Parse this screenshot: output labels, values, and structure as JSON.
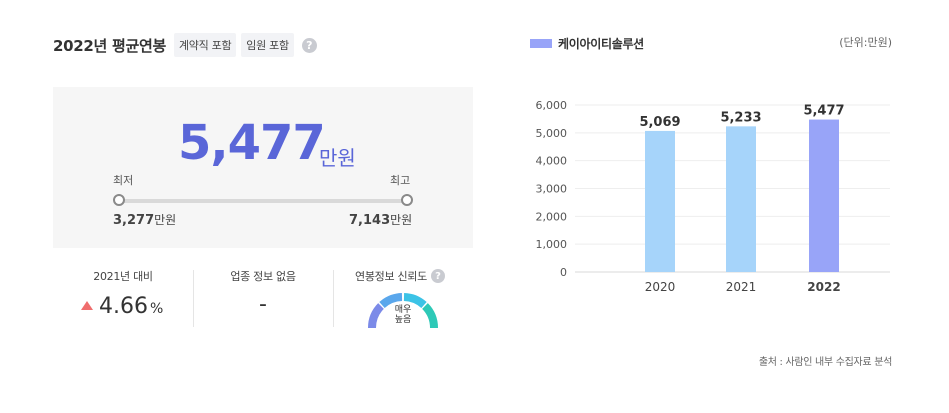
{
  "header": {
    "title": "2022년 평균연봉",
    "chips": [
      "계약직 포함",
      "임원 포함"
    ],
    "help_glyph": "?"
  },
  "salary": {
    "average": "5,477",
    "average_unit": "만원",
    "min_label": "최저",
    "max_label": "최고",
    "min_value": "3,277",
    "max_value": "7,143",
    "value_unit": "만원"
  },
  "stats": {
    "yoy_caption": "2021년 대비",
    "yoy_value": "4.66",
    "yoy_unit": "%",
    "yoy_direction": "up",
    "industry_caption": "업종 정보 없음",
    "industry_value": "-",
    "reliability_caption": "연봉정보 신뢰도",
    "reliability_line1": "매우",
    "reliability_line2": "높음"
  },
  "colors": {
    "accent": "#5a66d8",
    "bar_past": "#a6d4fa",
    "bar_current": "#98a4f8",
    "up_arrow": "#ef6d6d"
  },
  "chart_data": {
    "type": "bar",
    "legend": "케이아이티솔루션",
    "unit_note": "(단위:만원)",
    "categories": [
      "2020",
      "2021",
      "2022"
    ],
    "values": [
      5069,
      5233,
      5477
    ],
    "value_labels": [
      "5,069",
      "5,233",
      "5,477"
    ],
    "highlight_index": 2,
    "ylim": [
      0,
      6000
    ],
    "yticks": [
      0,
      1000,
      2000,
      3000,
      4000,
      5000,
      6000
    ],
    "ytick_labels": [
      "0",
      "1,000",
      "2,000",
      "3,000",
      "4,000",
      "5,000",
      "6,000"
    ],
    "grid": true,
    "legend_position": "top-left"
  },
  "footer": {
    "source": "출처 : 사람인 내부 수집자료 분석"
  }
}
